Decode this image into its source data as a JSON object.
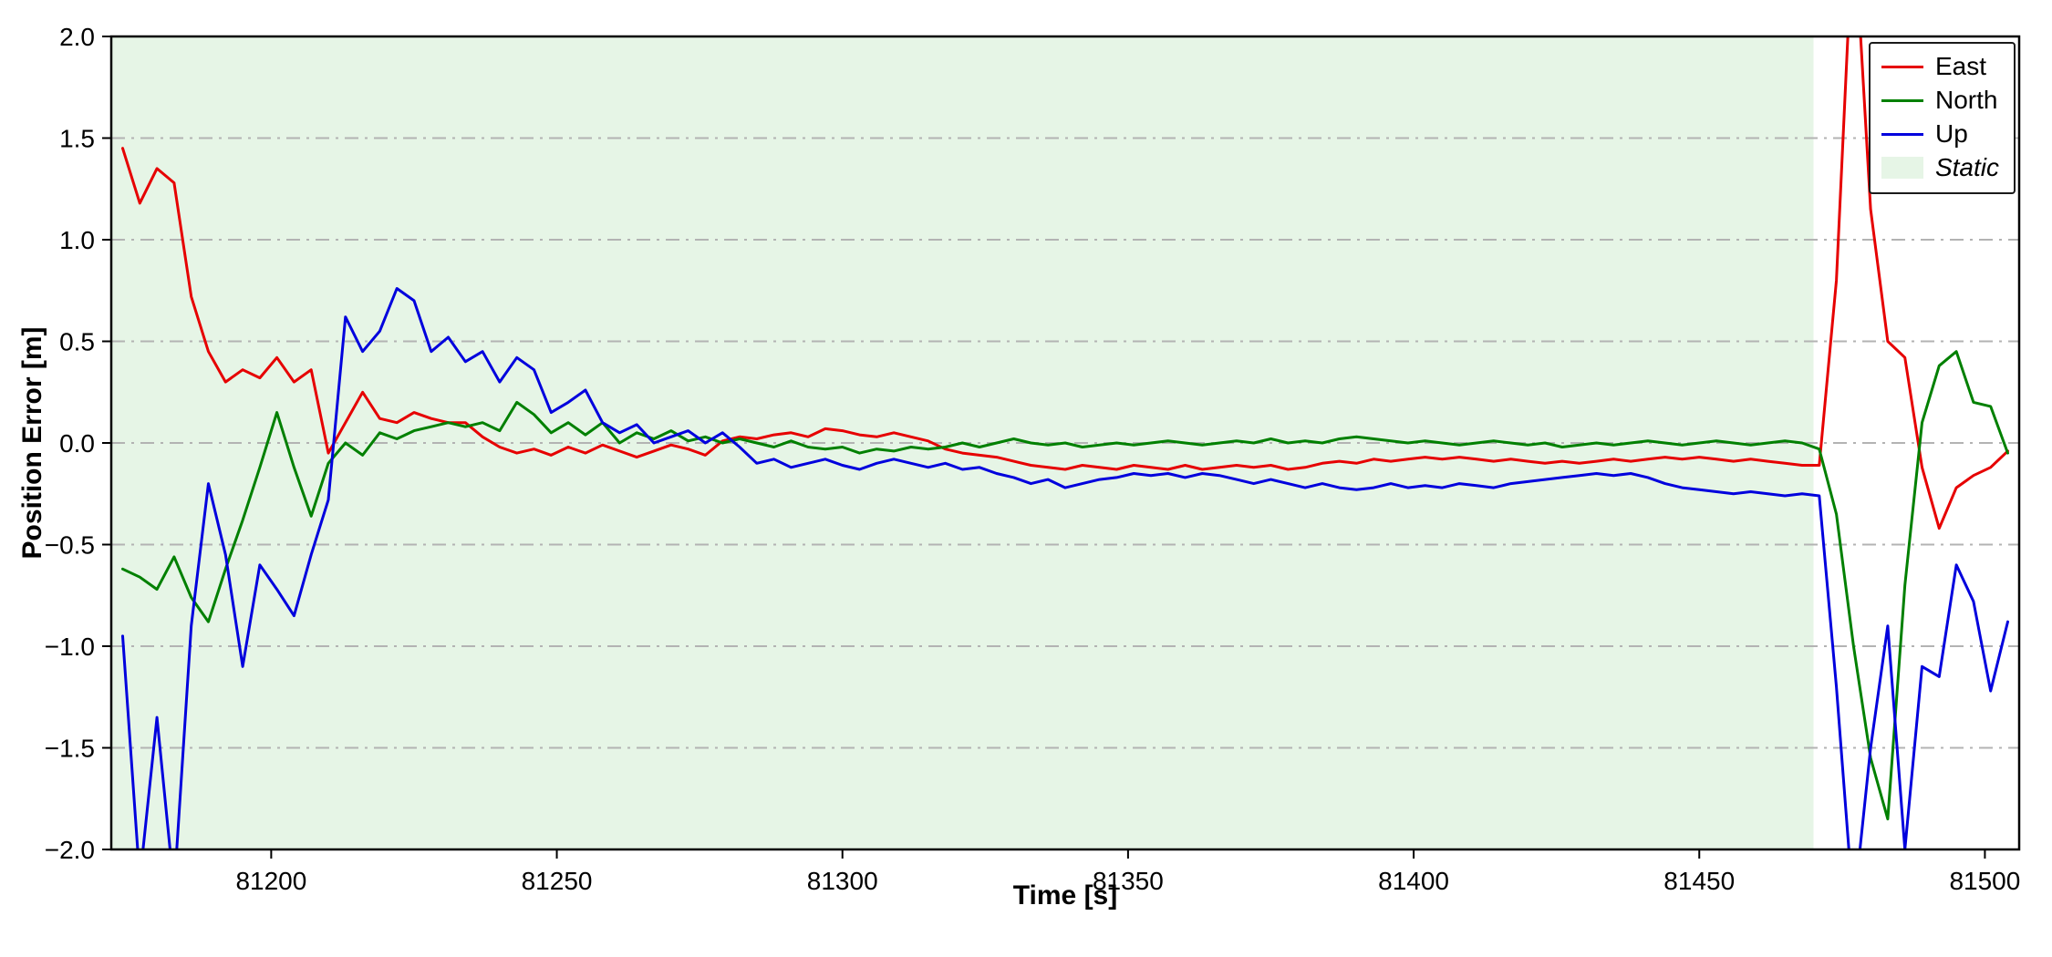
{
  "chart_data": {
    "type": "line",
    "title": "",
    "xlabel": "Time [s]",
    "ylabel": "Position Error [m]",
    "xlim": [
      81172,
      81506
    ],
    "ylim": [
      -2.0,
      2.0
    ],
    "xticks": [
      81200,
      81250,
      81300,
      81350,
      81400,
      81450,
      81500
    ],
    "yticks": [
      -2.0,
      -1.5,
      -1.0,
      -0.5,
      0.0,
      0.5,
      1.0,
      1.5,
      2.0
    ],
    "grid": "horizontal dash-dot gray lines",
    "legend_position": "upper right",
    "background_color": "#ffffff",
    "grid_color": "#b3b3b3",
    "shaded_region": {
      "label": "Static",
      "x_start": 81172,
      "x_end": 81470,
      "color": "#e6f5e6"
    },
    "x": [
      81174,
      81177,
      81180,
      81183,
      81186,
      81189,
      81192,
      81195,
      81198,
      81201,
      81204,
      81207,
      81210,
      81213,
      81216,
      81219,
      81222,
      81225,
      81228,
      81231,
      81234,
      81237,
      81240,
      81243,
      81246,
      81249,
      81252,
      81255,
      81258,
      81261,
      81264,
      81267,
      81270,
      81273,
      81276,
      81279,
      81282,
      81285,
      81288,
      81291,
      81294,
      81297,
      81300,
      81303,
      81306,
      81309,
      81312,
      81315,
      81318,
      81321,
      81324,
      81327,
      81330,
      81333,
      81336,
      81339,
      81342,
      81345,
      81348,
      81351,
      81354,
      81357,
      81360,
      81363,
      81366,
      81369,
      81372,
      81375,
      81378,
      81381,
      81384,
      81387,
      81390,
      81393,
      81396,
      81399,
      81402,
      81405,
      81408,
      81411,
      81414,
      81417,
      81420,
      81423,
      81426,
      81429,
      81432,
      81435,
      81438,
      81441,
      81444,
      81447,
      81450,
      81453,
      81456,
      81459,
      81462,
      81465,
      81468,
      81471,
      81474,
      81477,
      81480,
      81483,
      81486,
      81489,
      81492,
      81495,
      81498,
      81501,
      81504
    ],
    "series": [
      {
        "name": "East",
        "color": "#e60000",
        "values": [
          1.45,
          1.18,
          1.35,
          1.28,
          0.72,
          0.45,
          0.3,
          0.36,
          0.32,
          0.42,
          0.3,
          0.36,
          -0.05,
          0.1,
          0.25,
          0.12,
          0.1,
          0.15,
          0.12,
          0.1,
          0.1,
          0.03,
          -0.02,
          -0.05,
          -0.03,
          -0.06,
          -0.02,
          -0.05,
          -0.01,
          -0.04,
          -0.07,
          -0.04,
          -0.01,
          -0.03,
          -0.06,
          0.01,
          0.03,
          0.02,
          0.04,
          0.05,
          0.03,
          0.07,
          0.06,
          0.04,
          0.03,
          0.05,
          0.03,
          0.01,
          -0.03,
          -0.05,
          -0.06,
          -0.07,
          -0.09,
          -0.11,
          -0.12,
          -0.13,
          -0.11,
          -0.12,
          -0.13,
          -0.11,
          -0.12,
          -0.13,
          -0.11,
          -0.13,
          -0.12,
          -0.11,
          -0.12,
          -0.11,
          -0.13,
          -0.12,
          -0.1,
          -0.09,
          -0.1,
          -0.08,
          -0.09,
          -0.08,
          -0.07,
          -0.08,
          -0.07,
          -0.08,
          -0.09,
          -0.08,
          -0.09,
          -0.1,
          -0.09,
          -0.1,
          -0.09,
          -0.08,
          -0.09,
          -0.08,
          -0.07,
          -0.08,
          -0.07,
          -0.08,
          -0.09,
          -0.08,
          -0.09,
          -0.1,
          -0.11,
          -0.11,
          0.8,
          2.6,
          1.15,
          0.5,
          0.42,
          -0.12,
          -0.42,
          -0.22,
          -0.16,
          -0.12,
          -0.04
        ]
      },
      {
        "name": "North",
        "color": "#008000",
        "values": [
          -0.62,
          -0.66,
          -0.72,
          -0.56,
          -0.76,
          -0.88,
          -0.62,
          -0.38,
          -0.12,
          0.15,
          -0.12,
          -0.36,
          -0.1,
          0.0,
          -0.06,
          0.05,
          0.02,
          0.06,
          0.08,
          0.1,
          0.08,
          0.1,
          0.06,
          0.2,
          0.14,
          0.05,
          0.1,
          0.04,
          0.1,
          0.0,
          0.05,
          0.02,
          0.06,
          0.01,
          0.03,
          0.0,
          0.02,
          0.0,
          -0.02,
          0.01,
          -0.02,
          -0.03,
          -0.02,
          -0.05,
          -0.03,
          -0.04,
          -0.02,
          -0.03,
          -0.02,
          0.0,
          -0.02,
          0.0,
          0.02,
          0.0,
          -0.01,
          0.0,
          -0.02,
          -0.01,
          0.0,
          -0.01,
          0.0,
          0.01,
          0.0,
          -0.01,
          0.0,
          0.01,
          0.0,
          0.02,
          0.0,
          0.01,
          0.0,
          0.02,
          0.03,
          0.02,
          0.01,
          0.0,
          0.01,
          0.0,
          -0.01,
          0.0,
          0.01,
          0.0,
          -0.01,
          0.0,
          -0.02,
          -0.01,
          0.0,
          -0.01,
          0.0,
          0.01,
          0.0,
          -0.01,
          0.0,
          0.01,
          0.0,
          -0.01,
          0.0,
          0.01,
          0.0,
          -0.03,
          -0.35,
          -1.0,
          -1.55,
          -1.85,
          -0.7,
          0.1,
          0.38,
          0.45,
          0.2,
          0.18,
          -0.05
        ]
      },
      {
        "name": "Up",
        "color": "#0000dd",
        "values": [
          -0.95,
          -2.15,
          -1.35,
          -2.2,
          -0.9,
          -0.2,
          -0.55,
          -1.1,
          -0.6,
          -0.72,
          -0.85,
          -0.55,
          -0.28,
          0.62,
          0.45,
          0.55,
          0.76,
          0.7,
          0.45,
          0.52,
          0.4,
          0.45,
          0.3,
          0.42,
          0.36,
          0.15,
          0.2,
          0.26,
          0.1,
          0.05,
          0.09,
          0.0,
          0.03,
          0.06,
          0.0,
          0.05,
          -0.02,
          -0.1,
          -0.08,
          -0.12,
          -0.1,
          -0.08,
          -0.11,
          -0.13,
          -0.1,
          -0.08,
          -0.1,
          -0.12,
          -0.1,
          -0.13,
          -0.12,
          -0.15,
          -0.17,
          -0.2,
          -0.18,
          -0.22,
          -0.2,
          -0.18,
          -0.17,
          -0.15,
          -0.16,
          -0.15,
          -0.17,
          -0.15,
          -0.16,
          -0.18,
          -0.2,
          -0.18,
          -0.2,
          -0.22,
          -0.2,
          -0.22,
          -0.23,
          -0.22,
          -0.2,
          -0.22,
          -0.21,
          -0.22,
          -0.2,
          -0.21,
          -0.22,
          -0.2,
          -0.19,
          -0.18,
          -0.17,
          -0.16,
          -0.15,
          -0.16,
          -0.15,
          -0.17,
          -0.2,
          -0.22,
          -0.23,
          -0.24,
          -0.25,
          -0.24,
          -0.25,
          -0.26,
          -0.25,
          -0.26,
          -1.2,
          -2.3,
          -1.5,
          -0.9,
          -2.0,
          -1.1,
          -1.15,
          -0.6,
          -0.78,
          -1.22,
          -0.88
        ]
      }
    ],
    "legend_entries": [
      "East",
      "North",
      "Up",
      "Static"
    ]
  }
}
